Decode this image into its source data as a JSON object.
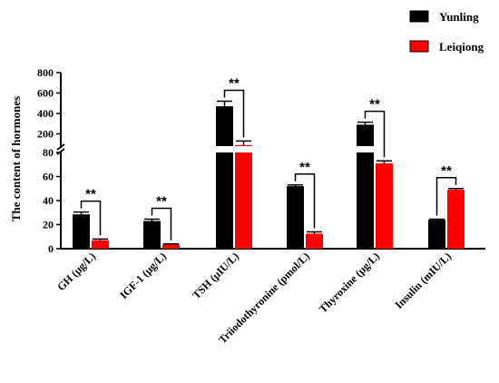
{
  "chart_data": {
    "type": "bar",
    "ylabel": "The content of  hormones",
    "categories": [
      "GH (μg/L)",
      "IGF-1 (μg/L)",
      "TSH (μIU/L)",
      "Triiodothyronine (pmol/L)",
      "Thyroxine (μg/L)",
      "Insulin (mIU/L)"
    ],
    "series": [
      {
        "name": "Yunling",
        "color": "#000000",
        "values": [
          28.5,
          23,
          470,
          52,
          290,
          24
        ],
        "errors": [
          2,
          1.5,
          50,
          1,
          25,
          0.5
        ]
      },
      {
        "name": "Leiqiong",
        "color": "#ff0000",
        "values": [
          7,
          3.5,
          90,
          12.5,
          71,
          49
        ],
        "errors": [
          1,
          0.5,
          40,
          1.5,
          2,
          1
        ]
      }
    ],
    "significance": [
      "**",
      "**",
      "**",
      "**",
      "**",
      "**"
    ],
    "y_axis_lower": {
      "range": [
        0,
        80
      ],
      "ticks": [
        "0",
        "20",
        "40",
        "60",
        "80"
      ]
    },
    "y_axis_upper": {
      "range": [
        80,
        800
      ],
      "ticks": [
        "200",
        "400",
        "600",
        "800"
      ]
    },
    "legend_position": "top-right",
    "grid": false
  }
}
